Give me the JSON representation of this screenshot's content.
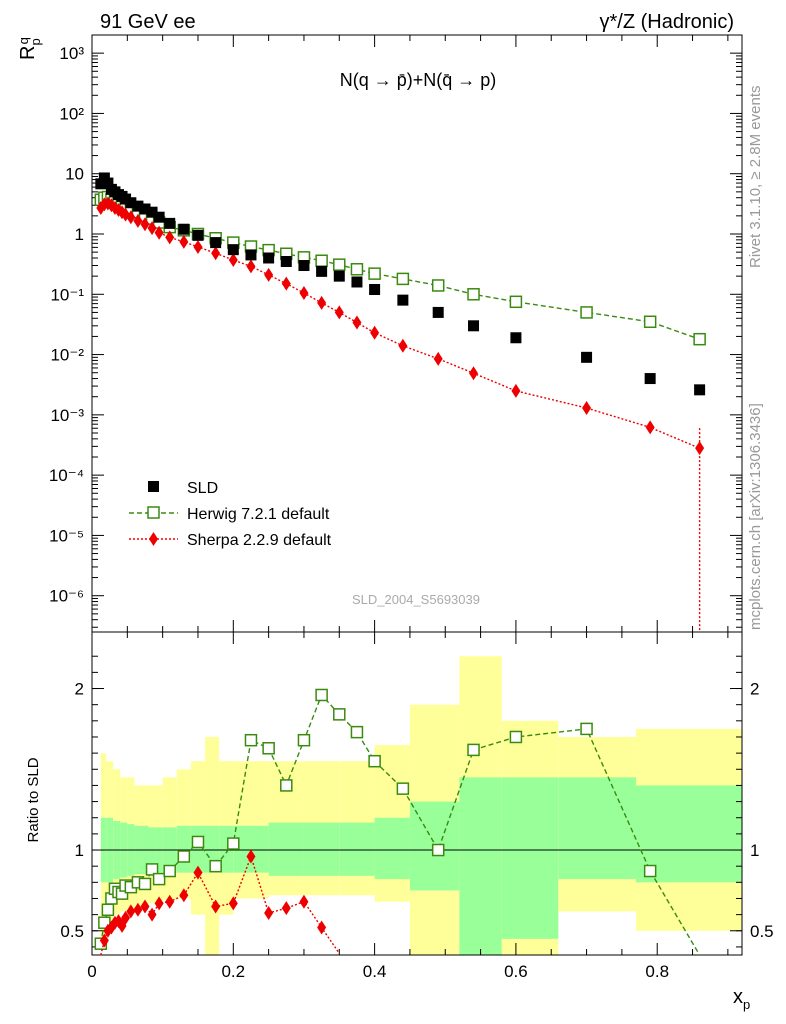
{
  "header": {
    "left": "91 GeV ee",
    "right": "γ*/Z (Hadronic)"
  },
  "side_text": {
    "rivet": "Rivet 3.1.10, ≥ 2.8M events",
    "source": "mcplots.cern.ch [arXiv:1306.3436]"
  },
  "watermark": "SLD_2004_S5693039",
  "colors": {
    "data": "#000000",
    "herwig": "#3a8a10",
    "sherpa": "#ee0000",
    "band_inner": "#99ff99",
    "band_outer": "#ffff99"
  },
  "chart_data": [
    {
      "type": "scatter",
      "panel": "main",
      "title": "N(q → p̄)+N(q̄ → p)",
      "ylabel": "R_p^q",
      "yscale": "log",
      "ylim": [
        2.5e-07,
        2000
      ],
      "xlim": [
        0,
        0.92
      ],
      "yticks": [
        "10⁻⁶",
        "10⁻⁵",
        "10⁻⁴",
        "10⁻³",
        "10⁻²",
        "10⁻¹",
        "1",
        "10",
        "10²",
        "10³"
      ],
      "legend": {
        "position": "bottom-left",
        "entries": [
          "SLD",
          "Herwig 7.2.1 default",
          "Sherpa 2.2.9 default"
        ]
      },
      "series": [
        {
          "name": "SLD",
          "x": [
            0.0125,
            0.0175,
            0.0225,
            0.0275,
            0.0325,
            0.0375,
            0.0425,
            0.0475,
            0.055,
            0.065,
            0.075,
            0.085,
            0.095,
            0.11,
            0.13,
            0.15,
            0.175,
            0.2,
            0.225,
            0.25,
            0.275,
            0.3,
            0.325,
            0.35,
            0.375,
            0.4,
            0.44,
            0.49,
            0.54,
            0.6,
            0.7,
            0.79,
            0.86
          ],
          "y": [
            6.8,
            8.5,
            7.0,
            5.5,
            5.0,
            4.5,
            4.2,
            3.8,
            3.3,
            2.9,
            2.6,
            2.3,
            1.9,
            1.5,
            1.2,
            0.95,
            0.72,
            0.55,
            0.45,
            0.4,
            0.35,
            0.3,
            0.24,
            0.2,
            0.16,
            0.12,
            0.08,
            0.05,
            0.03,
            0.019,
            0.009,
            0.004,
            0.0026
          ]
        },
        {
          "name": "Herwig 7.2.1 default",
          "x": [
            0.0125,
            0.0175,
            0.0225,
            0.0275,
            0.0325,
            0.0375,
            0.0425,
            0.0475,
            0.055,
            0.065,
            0.075,
            0.085,
            0.095,
            0.11,
            0.13,
            0.15,
            0.175,
            0.2,
            0.225,
            0.25,
            0.275,
            0.3,
            0.325,
            0.35,
            0.375,
            0.4,
            0.44,
            0.49,
            0.54,
            0.6,
            0.7,
            0.79,
            0.86
          ],
          "y": [
            3.7,
            4.0,
            4.1,
            3.8,
            3.6,
            3.4,
            3.1,
            2.9,
            2.6,
            2.3,
            2.0,
            1.8,
            1.55,
            1.3,
            1.15,
            1.0,
            0.85,
            0.72,
            0.62,
            0.54,
            0.47,
            0.41,
            0.36,
            0.31,
            0.26,
            0.22,
            0.18,
            0.14,
            0.1,
            0.075,
            0.05,
            0.035,
            0.018
          ]
        },
        {
          "name": "Sherpa 2.2.9 default",
          "x": [
            0.0125,
            0.0175,
            0.0225,
            0.0275,
            0.0325,
            0.0375,
            0.0425,
            0.0475,
            0.055,
            0.065,
            0.075,
            0.085,
            0.095,
            0.11,
            0.13,
            0.15,
            0.175,
            0.2,
            0.225,
            0.25,
            0.275,
            0.3,
            0.325,
            0.35,
            0.375,
            0.4,
            0.44,
            0.49,
            0.54,
            0.6,
            0.7,
            0.79,
            0.86
          ],
          "y": [
            2.7,
            3.1,
            3.2,
            3.0,
            2.7,
            2.5,
            2.3,
            2.1,
            1.9,
            1.65,
            1.45,
            1.25,
            1.05,
            0.88,
            0.74,
            0.61,
            0.48,
            0.37,
            0.29,
            0.21,
            0.15,
            0.105,
            0.072,
            0.05,
            0.034,
            0.023,
            0.014,
            0.0085,
            0.0049,
            0.0025,
            0.0013,
            0.00062,
            0.00028
          ]
        }
      ]
    },
    {
      "type": "line",
      "panel": "ratio",
      "ylabel": "Ratio to SLD",
      "xlabel": "x_p",
      "ylim": [
        0.35,
        2.35
      ],
      "yticks": [
        "0.5",
        "1",
        "2"
      ],
      "xticks": [
        "0",
        "0.2",
        "0.4",
        "0.6",
        "0.8"
      ],
      "series": [
        {
          "name": "Herwig 7.2.1 default",
          "x": [
            0.0125,
            0.0175,
            0.0225,
            0.0275,
            0.0325,
            0.0375,
            0.0425,
            0.0475,
            0.055,
            0.065,
            0.075,
            0.085,
            0.095,
            0.11,
            0.13,
            0.15,
            0.175,
            0.2,
            0.225,
            0.25,
            0.275,
            0.3,
            0.325,
            0.35,
            0.375,
            0.4,
            0.44,
            0.49,
            0.54,
            0.6,
            0.7,
            0.79,
            0.86
          ],
          "y": [
            0.42,
            0.55,
            0.63,
            0.7,
            0.76,
            0.74,
            0.73,
            0.78,
            0.77,
            0.8,
            0.79,
            0.88,
            0.82,
            0.87,
            0.96,
            1.05,
            0.9,
            1.04,
            1.68,
            1.63,
            1.4,
            1.68,
            1.96,
            1.84,
            1.73,
            1.55,
            1.38,
            1.0,
            1.62,
            1.7,
            1.75,
            0.87,
            0.35
          ]
        },
        {
          "name": "Sherpa 2.2.9 default",
          "x": [
            0.0125,
            0.0175,
            0.0225,
            0.0275,
            0.0325,
            0.0375,
            0.0425,
            0.0475,
            0.055,
            0.065,
            0.075,
            0.085,
            0.095,
            0.11,
            0.13,
            0.15,
            0.175,
            0.2,
            0.225,
            0.25,
            0.275,
            0.3,
            0.325,
            0.35
          ],
          "y": [
            0.35,
            0.44,
            0.5,
            0.52,
            0.55,
            0.56,
            0.53,
            0.58,
            0.62,
            0.63,
            0.65,
            0.6,
            0.67,
            0.68,
            0.72,
            0.86,
            0.65,
            0.67,
            0.96,
            0.61,
            0.64,
            0.68,
            0.52,
            0.36
          ]
        }
      ]
    }
  ]
}
